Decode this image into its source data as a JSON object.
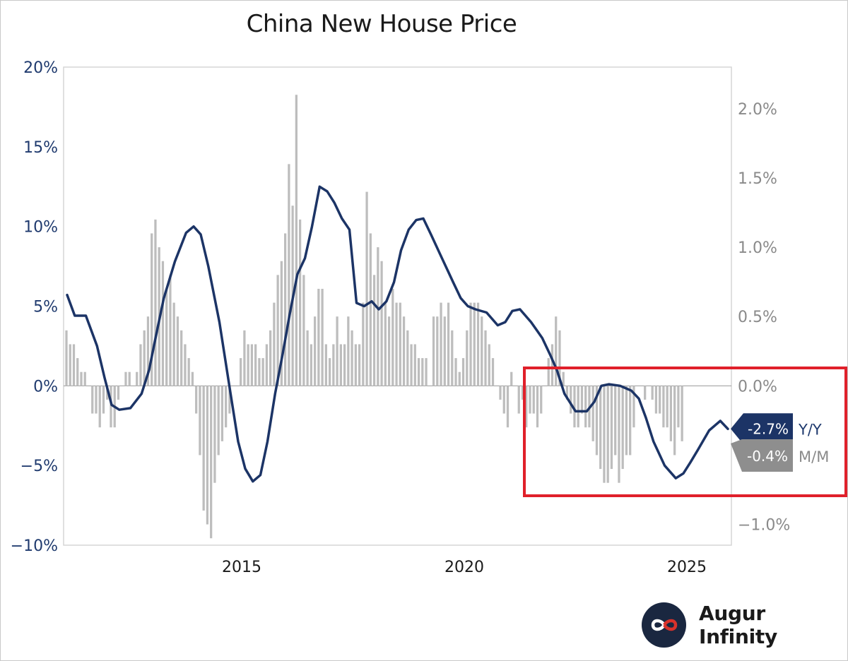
{
  "chart_data": {
    "type": "bar+line",
    "title": "China New House Price",
    "left_axis": {
      "ticks": [
        "20%",
        "15%",
        "10%",
        "5%",
        "0%",
        "−5%",
        "−10%"
      ],
      "values": [
        20,
        15,
        10,
        5,
        0,
        -5,
        -10
      ],
      "range": [
        -10,
        20
      ]
    },
    "right_axis": {
      "ticks": [
        "2.0%",
        "1.5%",
        "1.0%",
        "0.5%",
        "0.0%",
        "−1.0%"
      ],
      "values": [
        2.0,
        1.5,
        1.0,
        0.5,
        0.0,
        -1.0
      ],
      "range": [
        -1.15,
        2.3
      ]
    },
    "x_axis": {
      "ticks": [
        "2015",
        "2020",
        "2025"
      ],
      "values": [
        2015,
        2020,
        2025
      ],
      "range": [
        2011.0,
        2026.0
      ]
    },
    "series": [
      {
        "name": "Y/Y",
        "type": "line",
        "axis": "left",
        "color": "#1c3466",
        "latest_label": "-2.7%",
        "points": [
          [
            2011.08,
            5.7
          ],
          [
            2011.25,
            4.4
          ],
          [
            2011.5,
            4.4
          ],
          [
            2011.75,
            2.5
          ],
          [
            2011.92,
            0.5
          ],
          [
            2012.08,
            -1.2
          ],
          [
            2012.25,
            -1.5
          ],
          [
            2012.5,
            -1.4
          ],
          [
            2012.75,
            -0.5
          ],
          [
            2012.92,
            1.0
          ],
          [
            2013.08,
            3.2
          ],
          [
            2013.25,
            5.5
          ],
          [
            2013.5,
            7.8
          ],
          [
            2013.75,
            9.6
          ],
          [
            2013.92,
            10.0
          ],
          [
            2014.08,
            9.5
          ],
          [
            2014.25,
            7.5
          ],
          [
            2014.5,
            4.0
          ],
          [
            2014.75,
            -0.5
          ],
          [
            2014.92,
            -3.5
          ],
          [
            2015.08,
            -5.2
          ],
          [
            2015.25,
            -6.0
          ],
          [
            2015.42,
            -5.6
          ],
          [
            2015.58,
            -3.5
          ],
          [
            2015.75,
            -0.5
          ],
          [
            2015.92,
            2.0
          ],
          [
            2016.08,
            4.5
          ],
          [
            2016.25,
            7.0
          ],
          [
            2016.42,
            8.0
          ],
          [
            2016.58,
            10.0
          ],
          [
            2016.75,
            12.5
          ],
          [
            2016.92,
            12.2
          ],
          [
            2017.08,
            11.5
          ],
          [
            2017.25,
            10.5
          ],
          [
            2017.42,
            9.8
          ],
          [
            2017.58,
            5.2
          ],
          [
            2017.75,
            5.0
          ],
          [
            2017.92,
            5.3
          ],
          [
            2018.08,
            4.8
          ],
          [
            2018.25,
            5.3
          ],
          [
            2018.42,
            6.5
          ],
          [
            2018.58,
            8.5
          ],
          [
            2018.75,
            9.8
          ],
          [
            2018.92,
            10.4
          ],
          [
            2019.08,
            10.5
          ],
          [
            2019.25,
            9.5
          ],
          [
            2019.5,
            8.0
          ],
          [
            2019.75,
            6.5
          ],
          [
            2019.92,
            5.5
          ],
          [
            2020.08,
            5.0
          ],
          [
            2020.25,
            4.8
          ],
          [
            2020.5,
            4.6
          ],
          [
            2020.75,
            3.8
          ],
          [
            2020.92,
            4.0
          ],
          [
            2021.08,
            4.7
          ],
          [
            2021.25,
            4.8
          ],
          [
            2021.5,
            4.0
          ],
          [
            2021.75,
            3.0
          ],
          [
            2021.92,
            2.0
          ],
          [
            2022.08,
            1.0
          ],
          [
            2022.25,
            -0.5
          ],
          [
            2022.5,
            -1.6
          ],
          [
            2022.75,
            -1.6
          ],
          [
            2022.92,
            -1.0
          ],
          [
            2023.08,
            0.0
          ],
          [
            2023.25,
            0.1
          ],
          [
            2023.5,
            0.0
          ],
          [
            2023.75,
            -0.3
          ],
          [
            2023.92,
            -0.8
          ],
          [
            2024.08,
            -2.0
          ],
          [
            2024.25,
            -3.5
          ],
          [
            2024.5,
            -5.0
          ],
          [
            2024.75,
            -5.8
          ],
          [
            2024.92,
            -5.5
          ],
          [
            2025.08,
            -4.8
          ],
          [
            2025.25,
            -4.0
          ],
          [
            2025.5,
            -2.8
          ],
          [
            2025.75,
            -2.2
          ],
          [
            2025.92,
            -2.7
          ]
        ]
      },
      {
        "name": "M/M",
        "type": "bar",
        "axis": "right",
        "color": "#bdbdbd",
        "latest_label": "-0.4%",
        "start": 2011.0,
        "step": 0.0833,
        "values": [
          0.4,
          0.3,
          0.3,
          0.2,
          0.1,
          0.1,
          0.0,
          -0.2,
          -0.2,
          -0.3,
          -0.2,
          -0.1,
          -0.3,
          -0.3,
          -0.1,
          0.0,
          0.1,
          0.1,
          0.0,
          0.1,
          0.3,
          0.4,
          0.5,
          1.1,
          1.2,
          1.0,
          0.9,
          0.7,
          0.8,
          0.6,
          0.5,
          0.4,
          0.3,
          0.2,
          0.1,
          -0.2,
          -0.5,
          -0.9,
          -1.0,
          -1.1,
          -0.7,
          -0.5,
          -0.4,
          -0.3,
          -0.2,
          0.0,
          0.0,
          0.2,
          0.4,
          0.3,
          0.3,
          0.3,
          0.2,
          0.2,
          0.3,
          0.4,
          0.6,
          0.8,
          0.9,
          1.1,
          1.6,
          1.3,
          2.1,
          1.2,
          0.8,
          0.4,
          0.3,
          0.5,
          0.7,
          0.7,
          0.3,
          0.2,
          0.3,
          0.5,
          0.3,
          0.3,
          0.5,
          0.4,
          0.3,
          0.3,
          0.6,
          1.4,
          1.1,
          0.8,
          1.0,
          0.9,
          0.6,
          0.5,
          0.7,
          0.6,
          0.6,
          0.5,
          0.4,
          0.3,
          0.3,
          0.2,
          0.2,
          0.2,
          0.0,
          0.5,
          0.5,
          0.6,
          0.5,
          0.6,
          0.4,
          0.2,
          0.1,
          0.2,
          0.4,
          0.6,
          0.6,
          0.6,
          0.5,
          0.4,
          0.3,
          0.2,
          0.0,
          -0.1,
          -0.2,
          -0.3,
          0.1,
          0.0,
          -0.2,
          -0.1,
          -0.3,
          -0.2,
          -0.2,
          -0.3,
          -0.2,
          0.0,
          0.2,
          0.3,
          0.5,
          0.4,
          0.1,
          -0.1,
          -0.2,
          -0.3,
          -0.3,
          -0.2,
          -0.3,
          -0.3,
          -0.4,
          -0.5,
          -0.6,
          -0.7,
          -0.7,
          -0.6,
          -0.5,
          -0.7,
          -0.6,
          -0.5,
          -0.5,
          -0.3,
          0.0,
          0.0,
          -0.1,
          0.0,
          -0.1,
          -0.2,
          -0.2,
          -0.3,
          -0.3,
          -0.4,
          -0.5,
          -0.3,
          -0.4
        ]
      }
    ],
    "annotation": {
      "type": "highlight-box",
      "color": "#e0202a",
      "x_range": [
        2023.2,
        2026.5
      ],
      "y_range": [
        -6.8,
        1.2
      ]
    },
    "legend": {
      "yy_label": "Y/Y",
      "mm_label": "M/M",
      "placement": "right-edge"
    }
  },
  "brand": {
    "name": "Augur Infinity",
    "icon": "infinity-icon"
  }
}
